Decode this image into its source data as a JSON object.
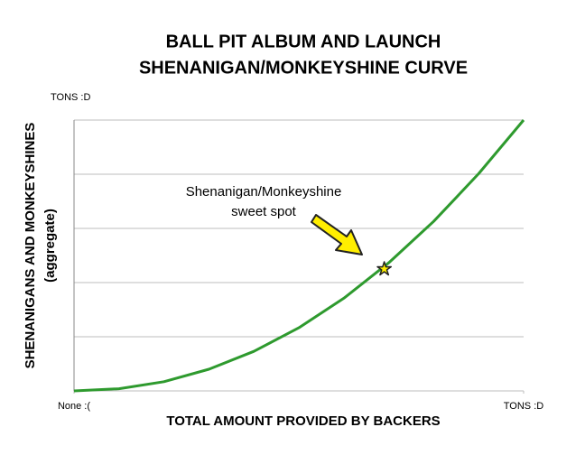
{
  "chart_data": {
    "type": "line",
    "title_lines": [
      "BALL PIT ALBUM AND LAUNCH",
      "SHENANIGAN/MONKEYSHINE CURVE"
    ],
    "x_label": "TOTAL AMOUNT PROVIDED BY BACKERS",
    "y_label_lines": [
      "SHENANIGANS AND MONKEYSHINES",
      "(aggregate)"
    ],
    "x": [
      0,
      10,
      20,
      30,
      40,
      50,
      60,
      70,
      80,
      90,
      100
    ],
    "series": [
      {
        "color": "#2e9a2e",
        "values": [
          0,
          0.8,
          3.4,
          8,
          14.6,
          23.3,
          34.2,
          47.3,
          62.6,
          80.2,
          100
        ]
      }
    ],
    "xlim": [
      0,
      100
    ],
    "ylim": [
      0,
      100
    ],
    "xticks": [
      {
        "value": 0,
        "label": "None :("
      },
      {
        "value": 100,
        "label": "TONS :D"
      }
    ],
    "yticks": [
      {
        "value": 20,
        "label": null
      },
      {
        "value": 40,
        "label": null
      },
      {
        "value": 60,
        "label": null
      },
      {
        "value": 80,
        "label": null
      },
      {
        "value": 100,
        "label": "TONS :D"
      }
    ],
    "grid": true,
    "annotation": {
      "text_lines": [
        "Shenanigan/Monkeyshine",
        "sweet spot"
      ],
      "x": 69,
      "y": 45,
      "color": "#ffee00"
    }
  }
}
